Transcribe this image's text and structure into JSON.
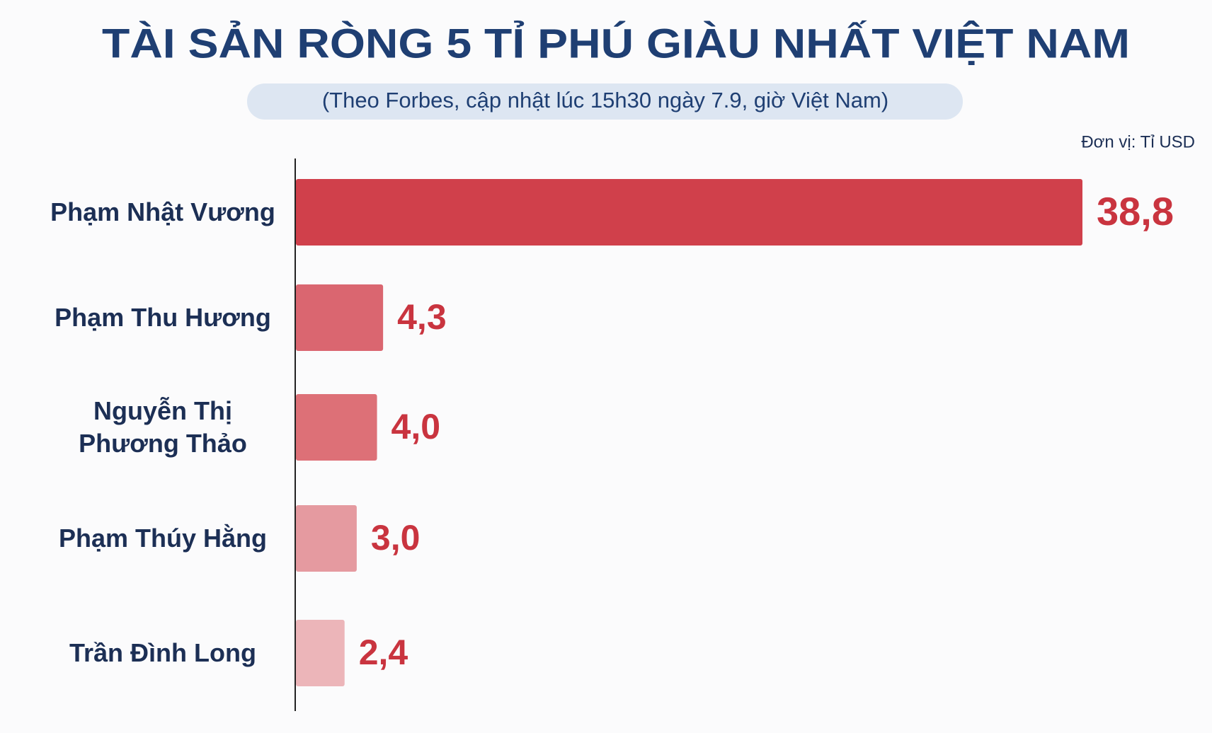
{
  "chart_data": {
    "type": "bar",
    "orientation": "horizontal",
    "title": "TÀI SẢN RÒNG 5 TỈ PHÚ GIÀU NHẤT VIỆT NAM",
    "subtitle": "(Theo Forbes, cập nhật lúc 15h30 ngày 7.9, giờ Việt Nam)",
    "unit_label": "Đơn vị: Tỉ USD",
    "categories": [
      "Phạm Nhật Vương",
      "Phạm Thu Hương",
      "Nguyễn Thị Phương Thảo",
      "Phạm Thúy Hằng",
      "Trần Đình Long"
    ],
    "values": [
      38.8,
      4.3,
      4.0,
      3.0,
      2.4
    ],
    "value_labels": [
      "38,8",
      "4,3",
      "4,0",
      "3,0",
      "2,4"
    ],
    "colors": [
      "#d0404b",
      "#da6670",
      "#dd7077",
      "#e59aa0",
      "#ecb5b9"
    ],
    "label_color": "#c9343f"
  }
}
